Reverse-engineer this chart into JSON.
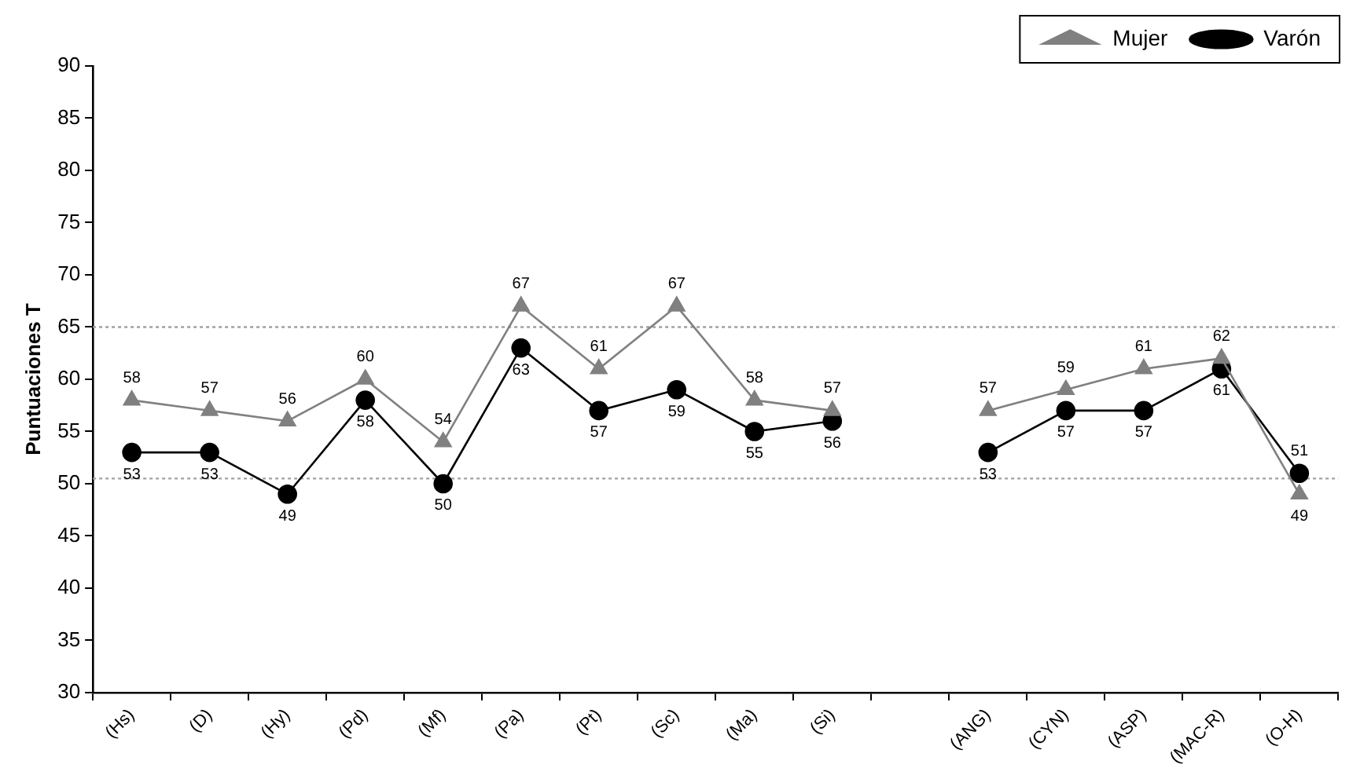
{
  "chart_data": {
    "type": "line",
    "ylabel": "Puntuaciones T",
    "categories": [
      "(Hs)",
      "(D)",
      "(Hy)",
      "(Pd)",
      "(Mf)",
      "(Pa)",
      "(Pt)",
      "(Sc)",
      "(Ma)",
      "(Si)",
      null,
      "(ANG)",
      "(CYN)",
      "(ASP)",
      "(MAC-R)",
      "(O-H)"
    ],
    "series": [
      {
        "name": "Varón",
        "color": "#000000",
        "marker": "circle",
        "values": [
          53,
          53,
          49,
          58,
          50,
          63,
          57,
          59,
          55,
          56,
          null,
          53,
          57,
          57,
          61,
          51
        ]
      },
      {
        "name": "Mujer",
        "color": "#808080",
        "marker": "triangle",
        "values": [
          58,
          57,
          56,
          60,
          54,
          67,
          61,
          67,
          58,
          57,
          null,
          57,
          59,
          61,
          62,
          49
        ]
      }
    ],
    "ylim": [
      30,
      90
    ],
    "yticks": [
      30,
      35,
      40,
      45,
      50,
      55,
      60,
      65,
      70,
      75,
      80,
      85,
      90
    ],
    "ref_lines": [
      {
        "axis": "y",
        "value": 65,
        "color": "#a0a0a0",
        "line_style": "dotted"
      },
      {
        "axis": "y",
        "value": 50.5,
        "color": "#a0a0a0",
        "line_style": "dotted"
      }
    ],
    "data_labels": true,
    "legend": "top right",
    "grid": false,
    "line_style": "solid"
  }
}
